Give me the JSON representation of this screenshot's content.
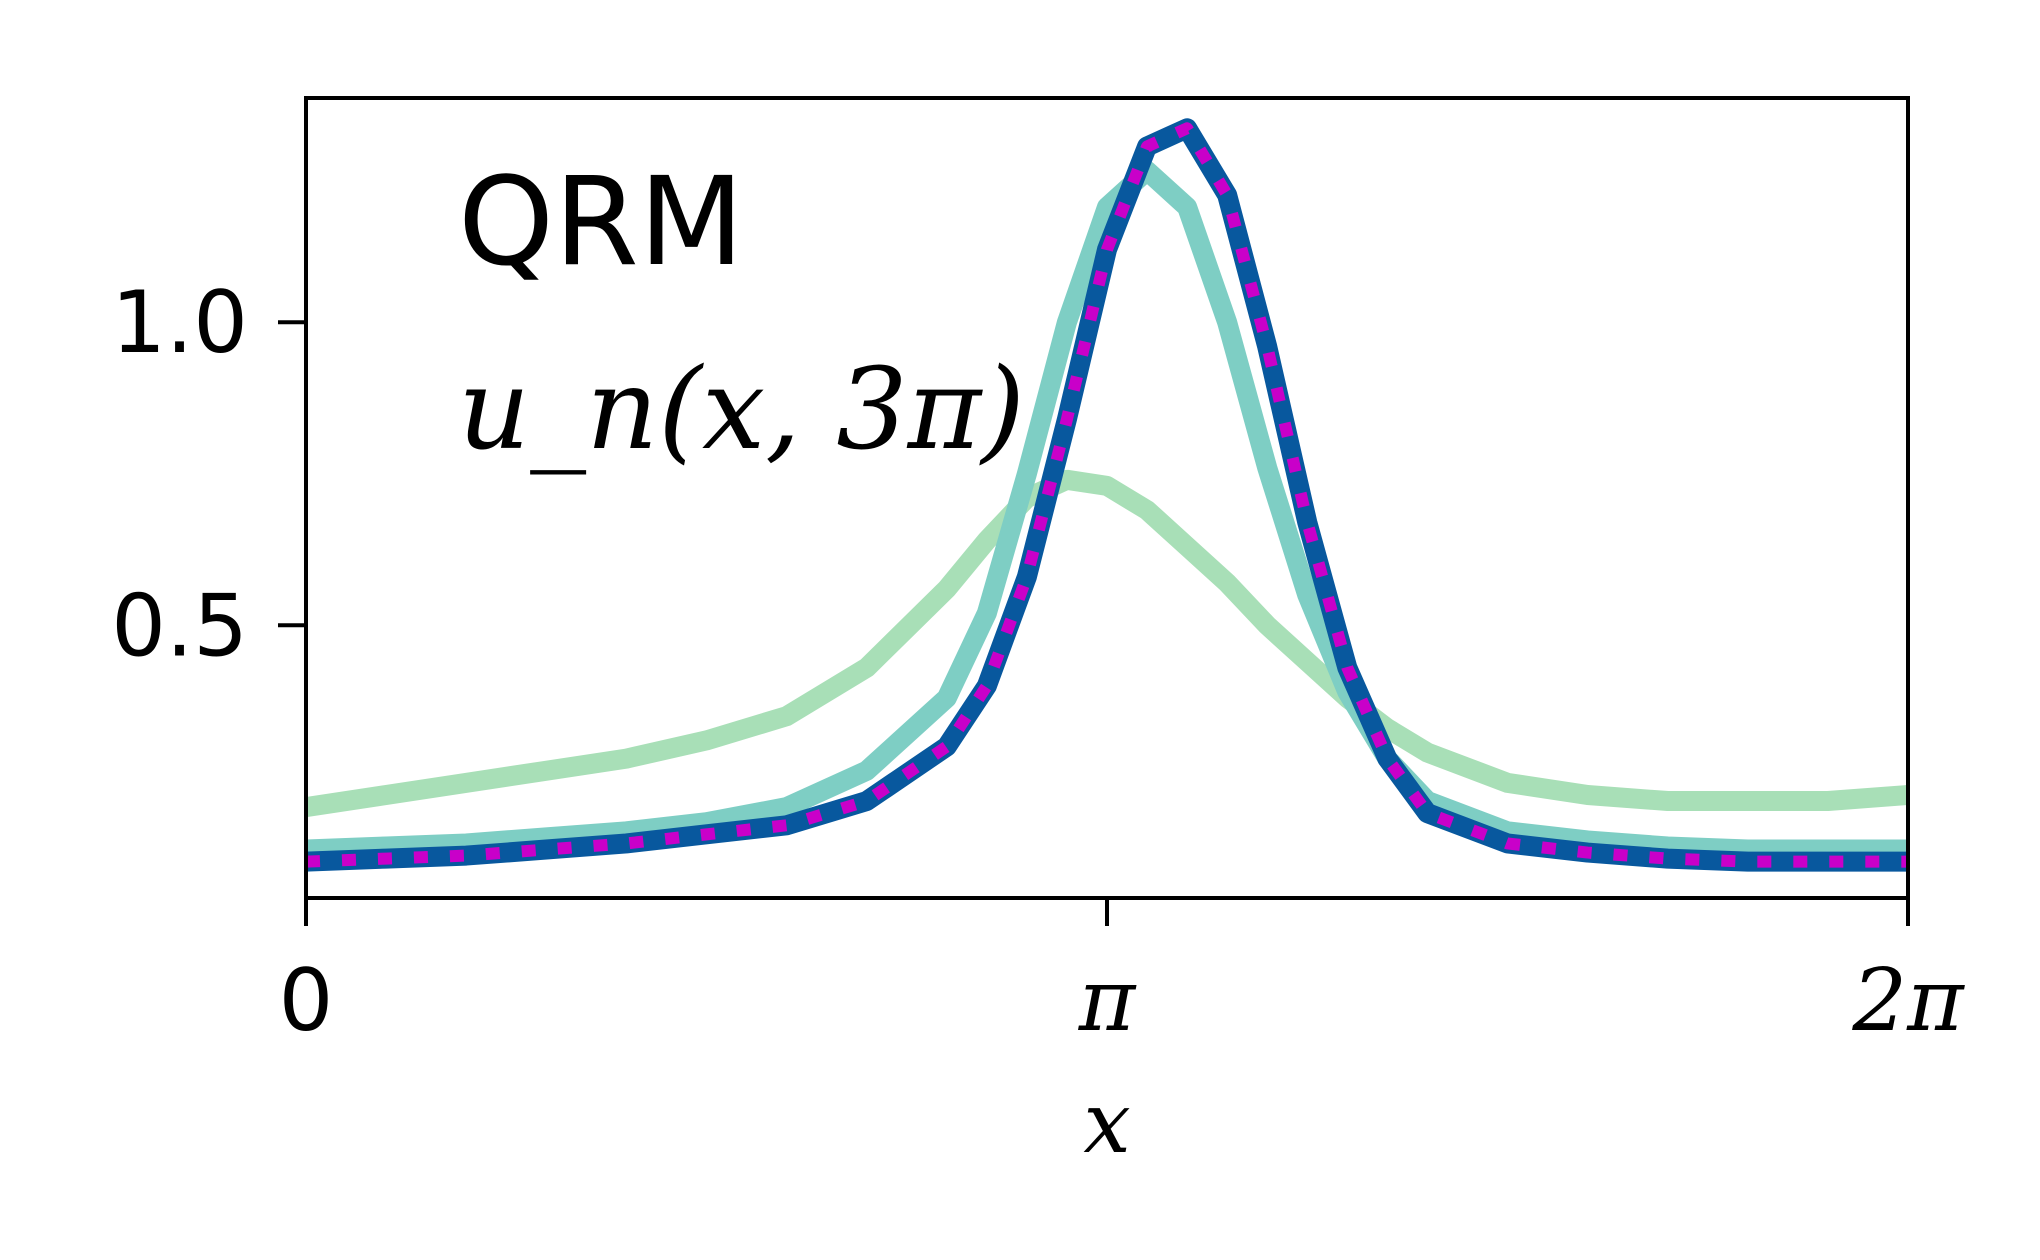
{
  "chart_data": {
    "type": "line",
    "title": "",
    "xlabel": "x",
    "ylabel": "",
    "xlim": [
      0,
      6.2832
    ],
    "ylim": [
      0.05,
      1.37
    ],
    "x_ticks": [
      {
        "value": 0,
        "label": "0"
      },
      {
        "value": 3.1416,
        "label": "π"
      },
      {
        "value": 6.2832,
        "label": "2π"
      }
    ],
    "y_ticks": [
      {
        "value": 0.5,
        "label": "0.5"
      },
      {
        "value": 1.0,
        "label": "1.0"
      }
    ],
    "grid": false,
    "legend": "none",
    "annotations": {
      "model": "QRM",
      "function": "u_n(x, 3π)"
    },
    "x": [
      0,
      0.3142,
      0.6283,
      0.9425,
      1.2566,
      1.5708,
      1.885,
      2.1991,
      2.5133,
      2.6704,
      2.8274,
      2.9845,
      3.1416,
      3.2987,
      3.4558,
      3.6128,
      3.7699,
      3.927,
      4.0841,
      4.2412,
      4.3982,
      4.7124,
      5.0265,
      5.3407,
      5.6549,
      5.969,
      6.2832
    ],
    "series": [
      {
        "color": "#a8dfb7",
        "values": [
          0.2,
          0.22,
          0.24,
          0.26,
          0.28,
          0.31,
          0.35,
          0.43,
          0.56,
          0.64,
          0.71,
          0.74,
          0.73,
          0.69,
          0.63,
          0.57,
          0.5,
          0.44,
          0.38,
          0.33,
          0.29,
          0.24,
          0.22,
          0.21,
          0.21,
          0.21,
          0.22
        ]
      },
      {
        "color": "#7ecec4",
        "values": [
          0.13,
          0.135,
          0.14,
          0.15,
          0.16,
          0.175,
          0.2,
          0.26,
          0.38,
          0.52,
          0.75,
          1.0,
          1.19,
          1.25,
          1.19,
          1.0,
          0.76,
          0.55,
          0.39,
          0.28,
          0.21,
          0.16,
          0.145,
          0.135,
          0.13,
          0.13,
          0.13
        ]
      },
      {
        "color": "#08589e",
        "values": [
          0.11,
          0.115,
          0.12,
          0.13,
          0.14,
          0.155,
          0.17,
          0.21,
          0.3,
          0.4,
          0.58,
          0.84,
          1.12,
          1.29,
          1.32,
          1.21,
          0.96,
          0.67,
          0.43,
          0.28,
          0.19,
          0.14,
          0.125,
          0.115,
          0.11,
          0.11,
          0.11
        ]
      },
      {
        "color": "#c900c9",
        "dashed": true,
        "values": [
          0.11,
          0.115,
          0.12,
          0.13,
          0.14,
          0.155,
          0.17,
          0.21,
          0.3,
          0.4,
          0.58,
          0.84,
          1.12,
          1.29,
          1.32,
          1.21,
          0.96,
          0.67,
          0.43,
          0.28,
          0.19,
          0.14,
          0.125,
          0.115,
          0.11,
          0.11,
          0.11
        ]
      }
    ]
  }
}
